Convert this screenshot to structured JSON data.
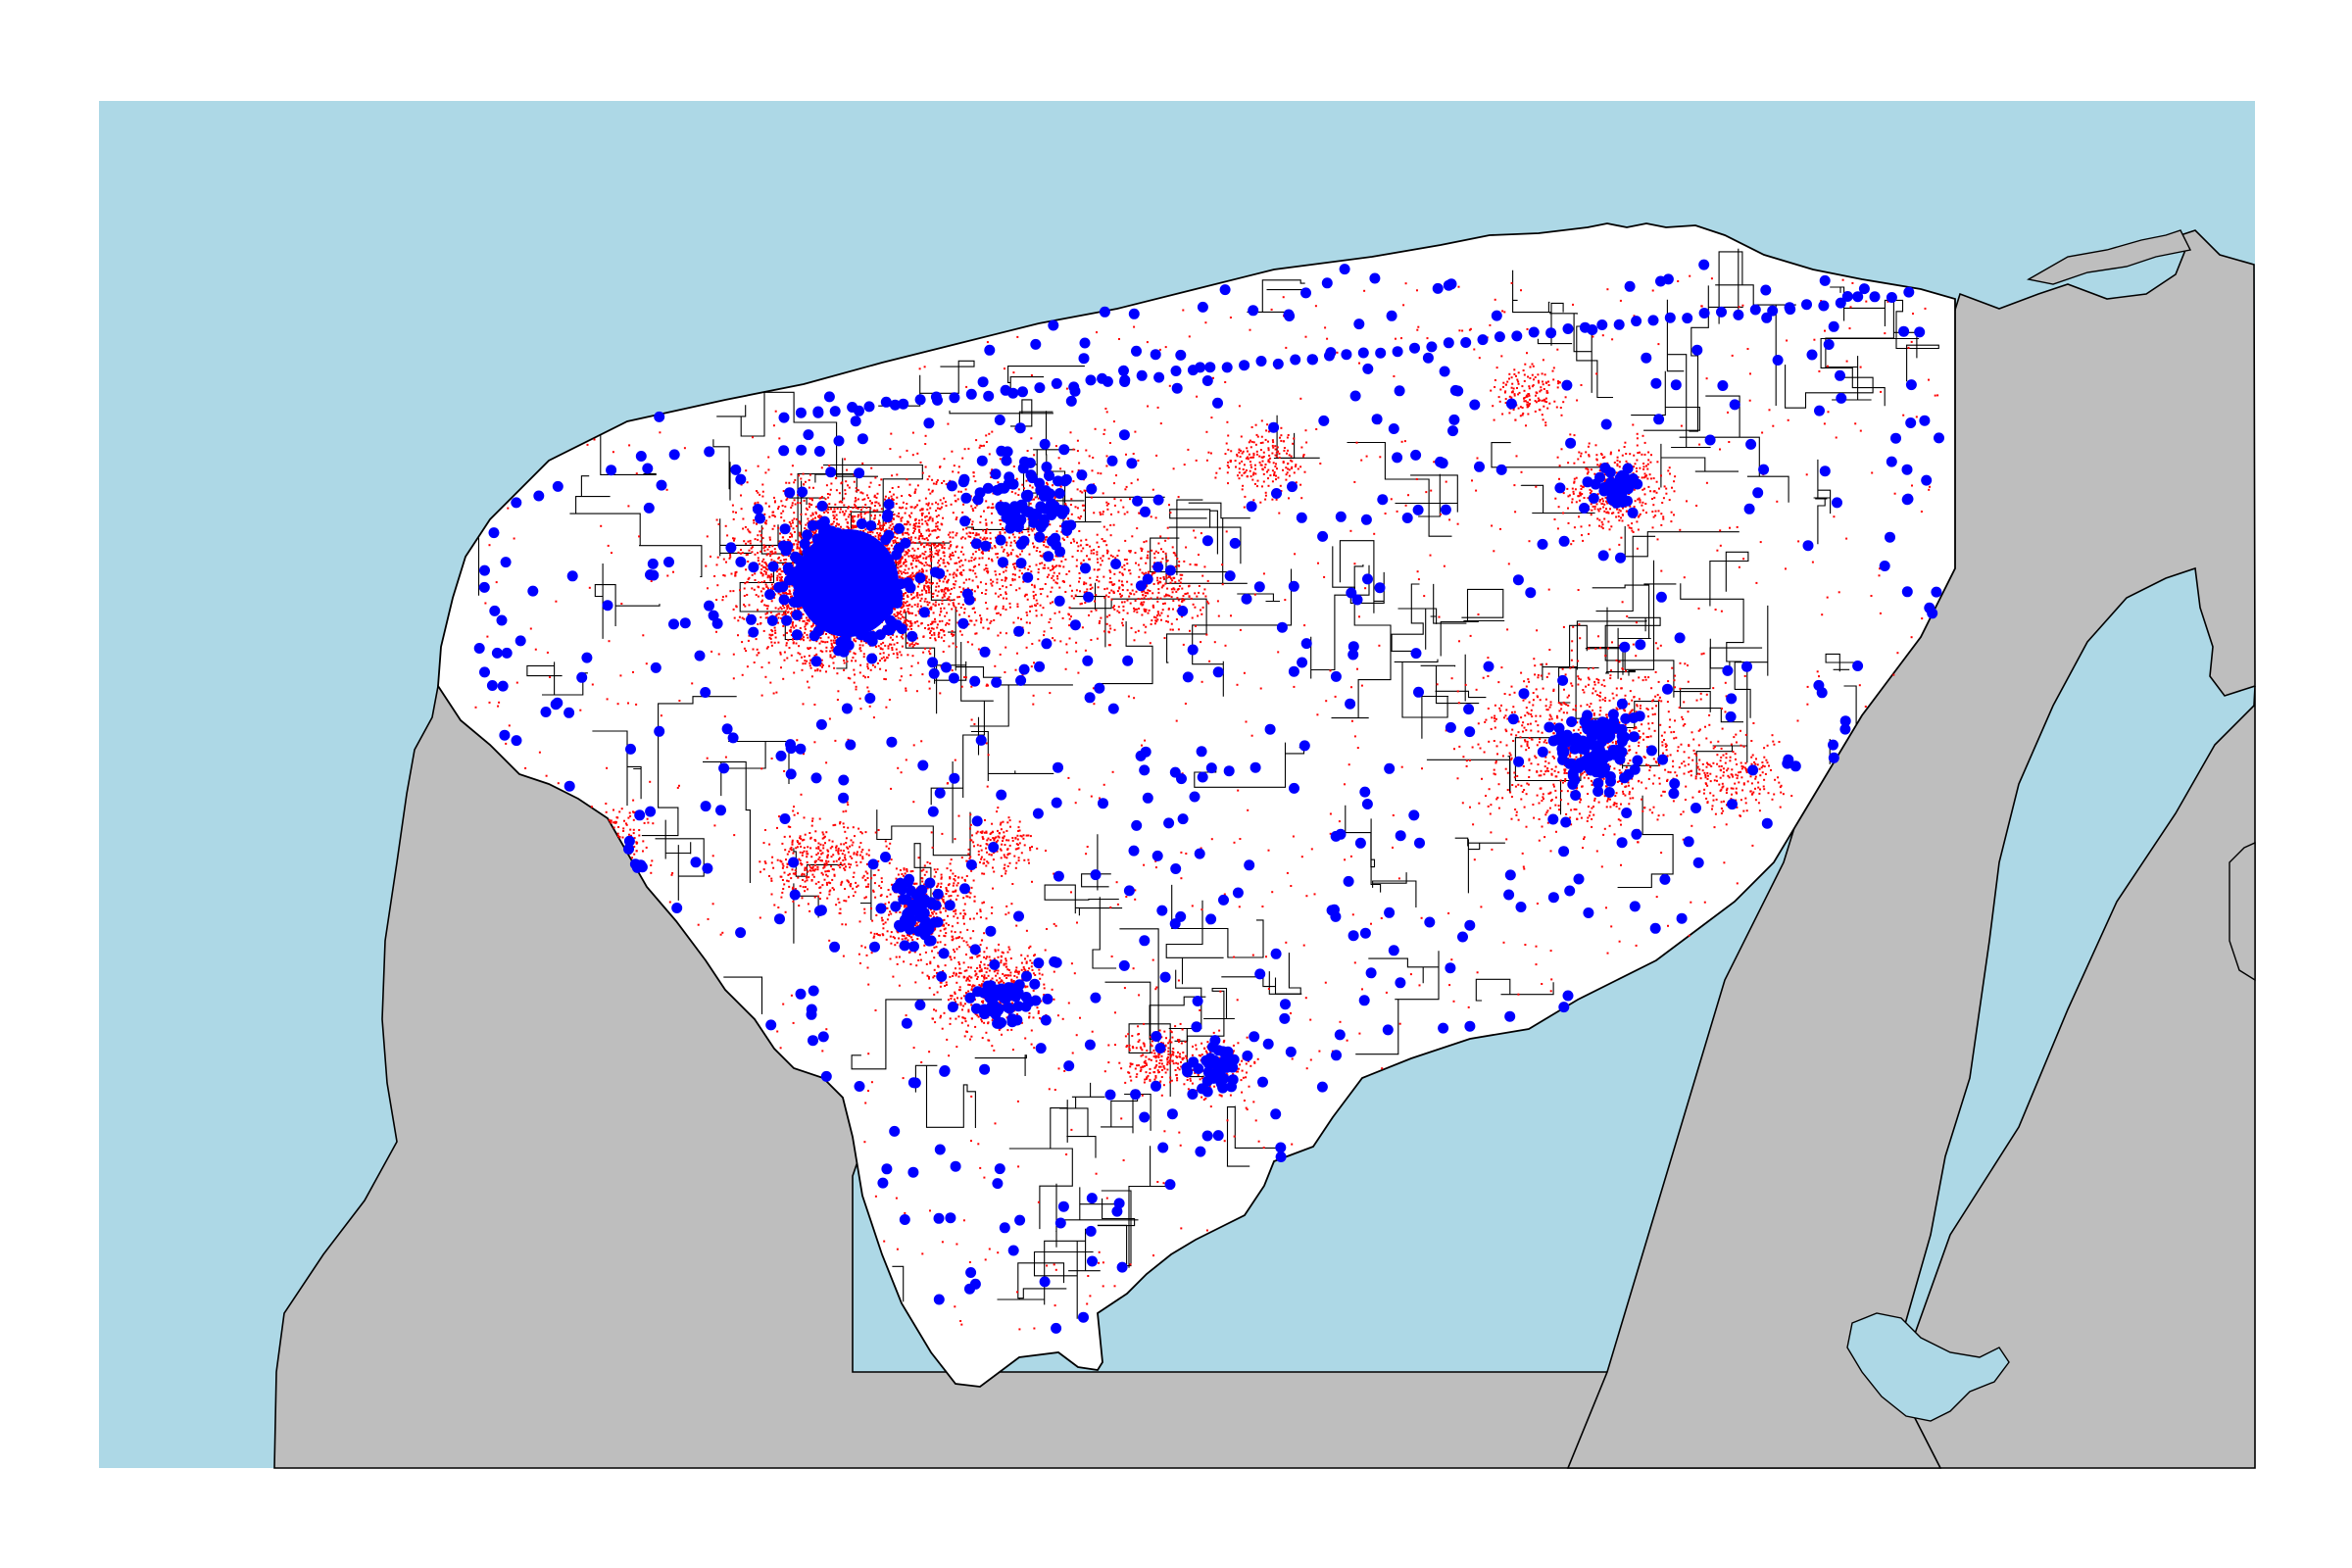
{
  "map": {
    "colors": {
      "sea": "#add8e6",
      "land_other": "#bebebe",
      "region_fill": "#ffffff",
      "boundary": "#000000",
      "red_points": "#ff0000",
      "blue_points": "#0000ff"
    },
    "layers": [
      "sea",
      "surrounding-land",
      "region-municipalities",
      "red-point-layer",
      "blue-point-layer"
    ]
  }
}
